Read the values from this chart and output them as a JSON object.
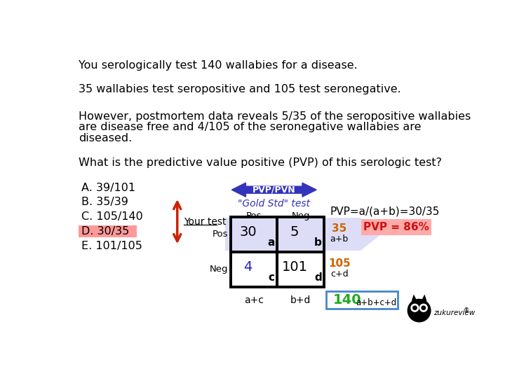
{
  "bg_color": "#ffffff",
  "arrow_blue_color": "#3333bb",
  "arrow_fill_color": "#aaaaee",
  "highlight_color": "#ff9999",
  "pvp_result_bg": "#ffaaaa",
  "orange_color": "#cc6600",
  "green_color": "#22aa22",
  "blue_num_color": "#2222cc",
  "total_box_color": "#4488cc",
  "red_arrow_color": "#cc2200",
  "pvp_text_color": "#cc1111",
  "choices": [
    "A. 39/101",
    "B. 35/39",
    "C. 105/140",
    "D. 30/35",
    "E. 101/105"
  ],
  "answer_index": 3,
  "pvp_formula": "PVP=a/(a+b)=30/35",
  "pvp_result": "PVP = 86%",
  "gold_std_label": "\"Gold Std\" test",
  "your_test_label": "Your test",
  "pvpvn_label": "PVP/PVN",
  "a_val": "30",
  "b_val": "5",
  "c_val": "4",
  "d_val": "101",
  "row1_sum": "35",
  "row2_sum": "105",
  "total": "140",
  "col_labels": [
    "Pos",
    "Neg"
  ],
  "row_labels": [
    "Pos",
    "Neg"
  ],
  "bottom_labels": [
    "a+c",
    "b+d"
  ],
  "total_label": "a+b+c+d",
  "cell_labels": [
    "a",
    "b",
    "c",
    "d"
  ],
  "line1": "You serologically test 140 wallabies for a disease.",
  "line2": "35 wallabies test seropositive and 105 test seronegative.",
  "line3a": "However, postmortem data reveals 5/35 of the seropositive wallabies",
  "line3b": "are disease free and 4/105 of the seronegative wallabies are",
  "line3c": "diseased.",
  "line4": "What is the predictive value positive (PVP) of this serologic test?"
}
